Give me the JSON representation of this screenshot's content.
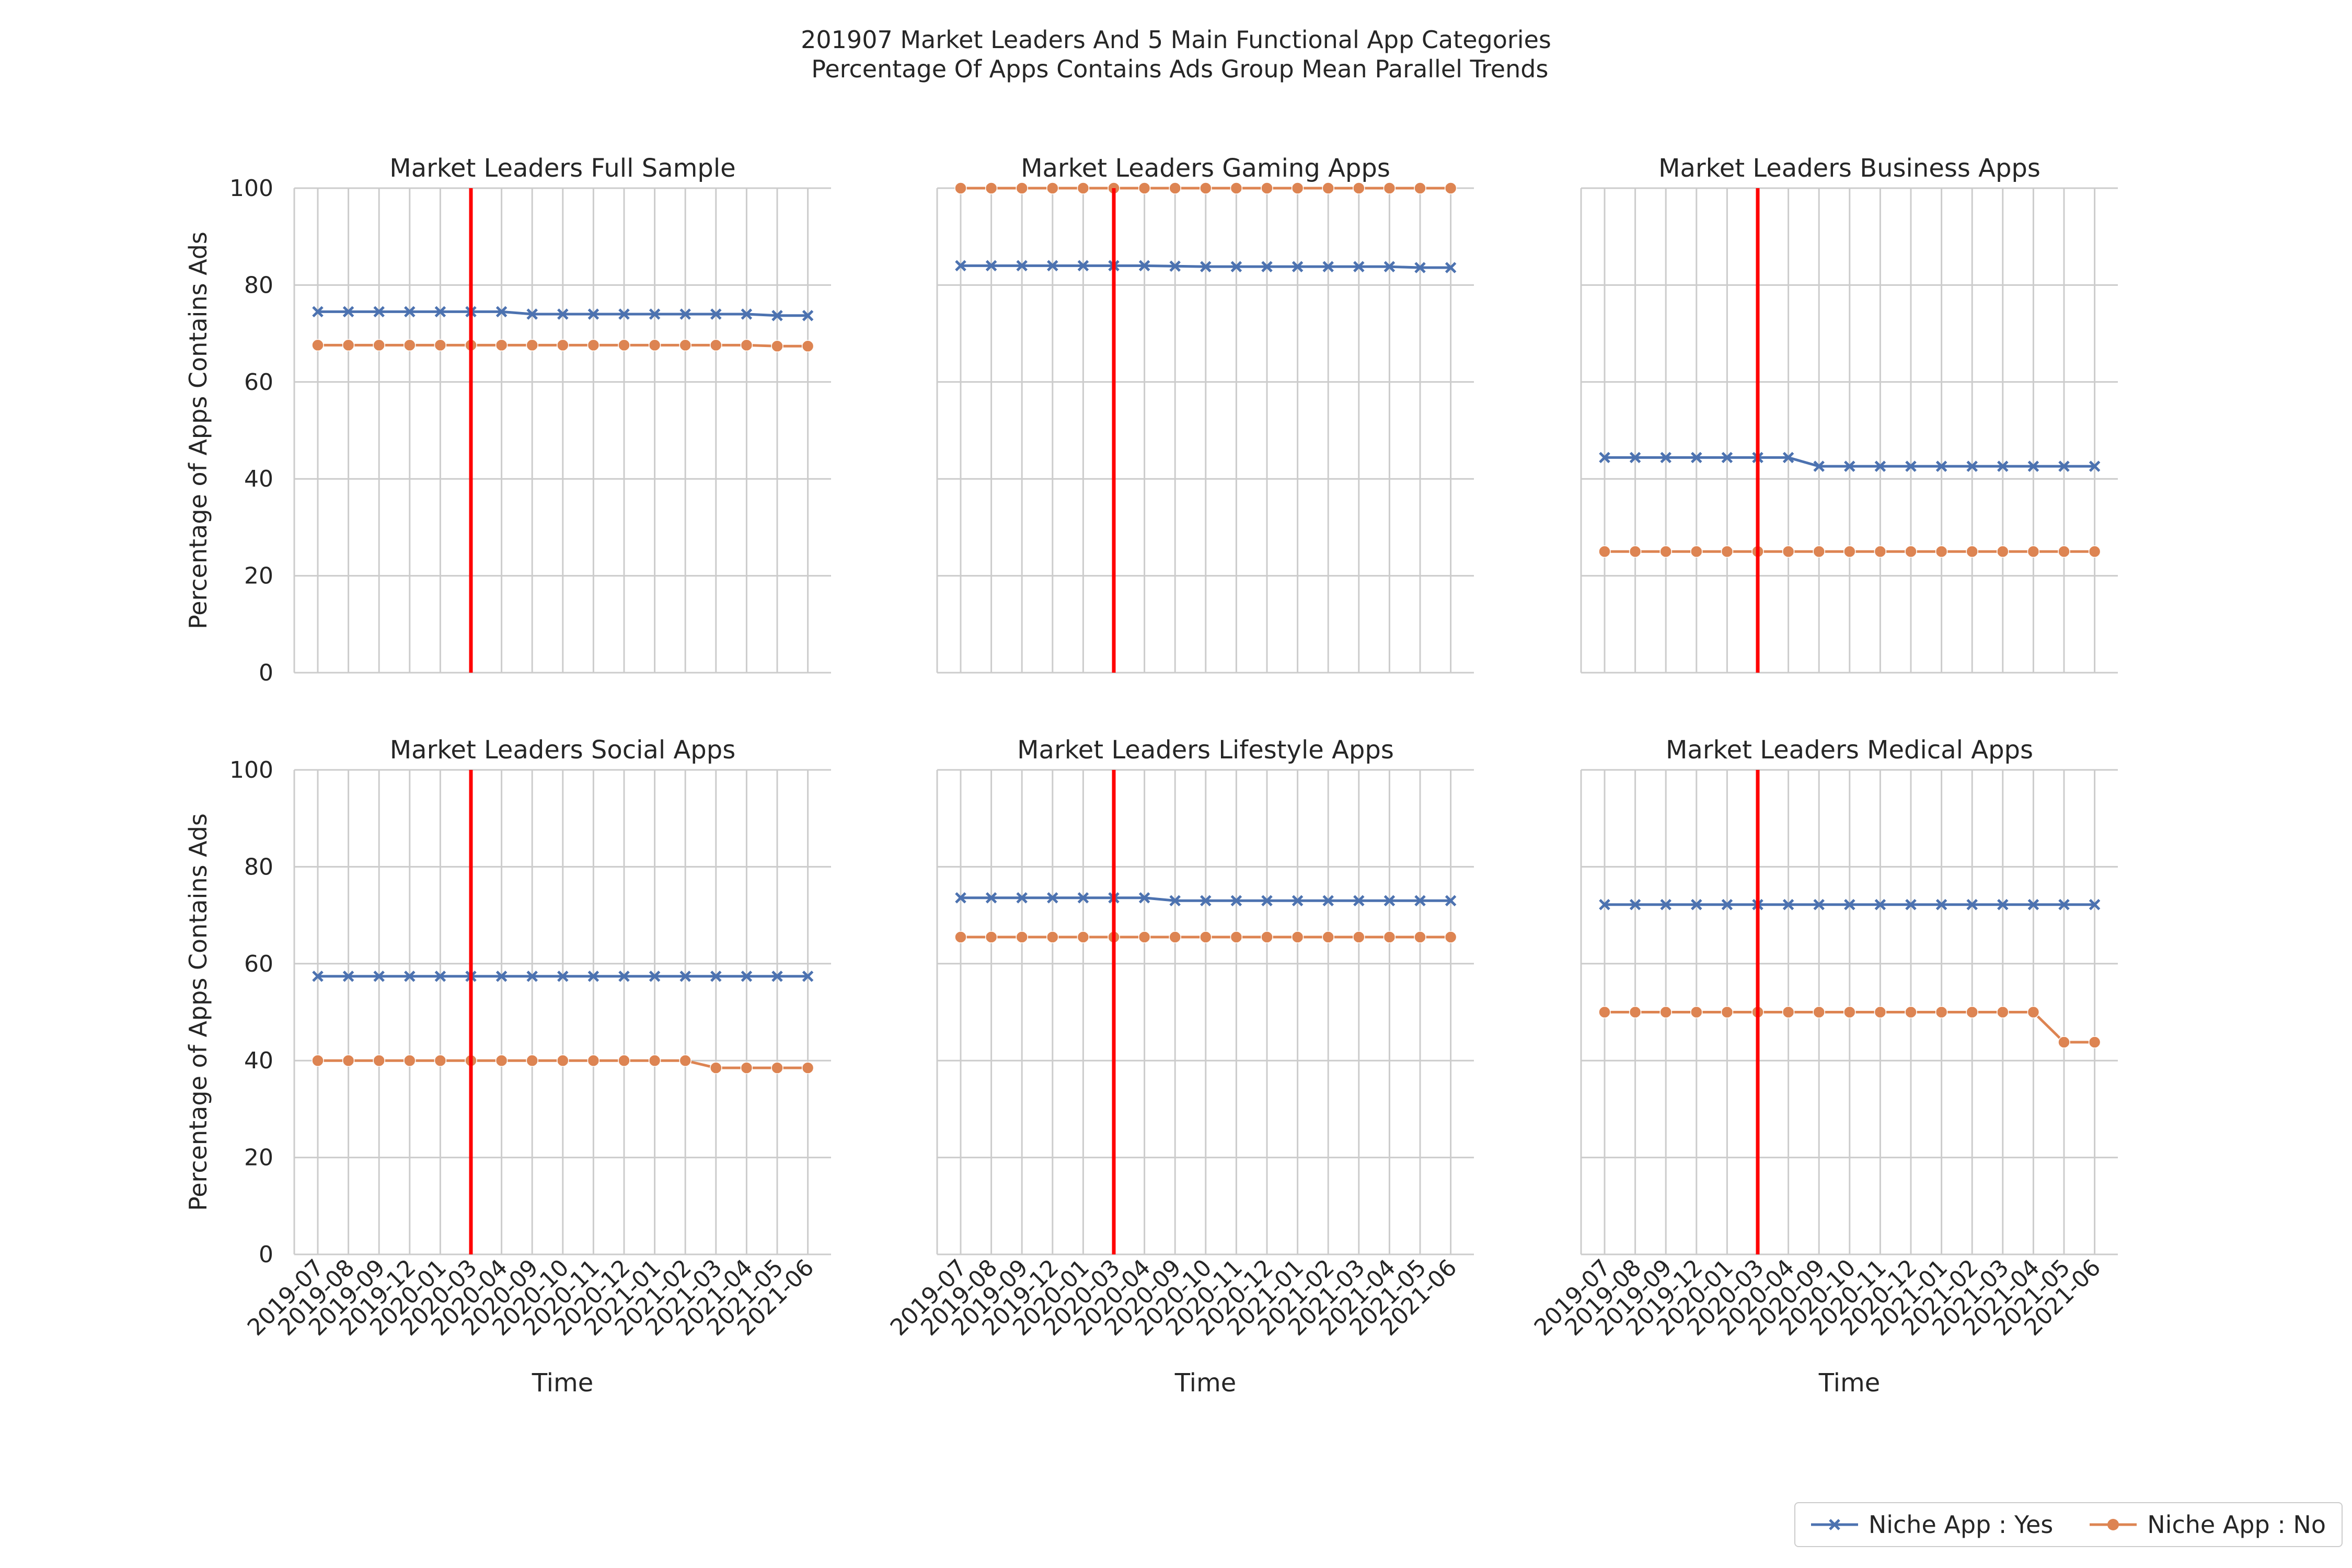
{
  "figure": {
    "title_line1": "201907 Market Leaders And 5 Main Functional App Categories",
    "title_line2": " Percentage Of Apps Contains Ads Group Mean Parallel Trends"
  },
  "colors": {
    "series_yes": "#4c72b0",
    "series_no": "#dd8452",
    "treatment_line": "#ff0000",
    "grid": "#cccccc",
    "text": "#262626"
  },
  "legend": [
    {
      "label": "Niche App : Yes",
      "marker": "x"
    },
    {
      "label": "Niche App : No",
      "marker": "circle"
    }
  ],
  "chart_data": [
    {
      "type": "line",
      "title": "Market Leaders Full Sample",
      "xlabel": "Time",
      "ylabel": "Percentage of Apps Contains Ads",
      "x": [
        "2019-07",
        "2019-08",
        "2019-09",
        "2019-12",
        "2020-01",
        "2020-03",
        "2020-04",
        "2020-09",
        "2020-10",
        "2020-11",
        "2020-12",
        "2021-01",
        "2021-02",
        "2021-03",
        "2021-04",
        "2021-05",
        "2021-06"
      ],
      "ylim": [
        0,
        100
      ],
      "yticks": [
        0,
        20,
        40,
        60,
        80,
        100
      ],
      "treatment_line_at": "2020-03",
      "series": [
        {
          "name": "Niche App : Yes",
          "values": [
            74.5,
            74.5,
            74.5,
            74.5,
            74.5,
            74.5,
            74.5,
            74.0,
            74.0,
            74.0,
            74.0,
            74.0,
            74.0,
            74.0,
            74.0,
            73.7,
            73.7
          ]
        },
        {
          "name": "Niche App : No",
          "values": [
            67.6,
            67.6,
            67.6,
            67.6,
            67.6,
            67.6,
            67.6,
            67.6,
            67.6,
            67.6,
            67.6,
            67.6,
            67.6,
            67.6,
            67.6,
            67.4,
            67.4
          ]
        }
      ]
    },
    {
      "type": "line",
      "title": "Market Leaders Gaming Apps",
      "xlabel": "Time",
      "ylabel": "",
      "x": [
        "2019-07",
        "2019-08",
        "2019-09",
        "2019-12",
        "2020-01",
        "2020-03",
        "2020-04",
        "2020-09",
        "2020-10",
        "2020-11",
        "2020-12",
        "2021-01",
        "2021-02",
        "2021-03",
        "2021-04",
        "2021-05",
        "2021-06"
      ],
      "ylim": [
        0,
        100
      ],
      "yticks": [
        0,
        20,
        40,
        60,
        80,
        100
      ],
      "treatment_line_at": "2020-03",
      "series": [
        {
          "name": "Niche App : Yes",
          "values": [
            84.0,
            84.0,
            84.0,
            84.0,
            84.0,
            84.0,
            84.0,
            83.9,
            83.8,
            83.8,
            83.8,
            83.8,
            83.8,
            83.8,
            83.8,
            83.6,
            83.6
          ]
        },
        {
          "name": "Niche App : No",
          "values": [
            100,
            100,
            100,
            100,
            100,
            100,
            100,
            100,
            100,
            100,
            100,
            100,
            100,
            100,
            100,
            100,
            100
          ]
        }
      ]
    },
    {
      "type": "line",
      "title": "Market Leaders Business Apps",
      "xlabel": "Time",
      "ylabel": "",
      "x": [
        "2019-07",
        "2019-08",
        "2019-09",
        "2019-12",
        "2020-01",
        "2020-03",
        "2020-04",
        "2020-09",
        "2020-10",
        "2020-11",
        "2020-12",
        "2021-01",
        "2021-02",
        "2021-03",
        "2021-04",
        "2021-05",
        "2021-06"
      ],
      "ylim": [
        0,
        100
      ],
      "yticks": [
        0,
        20,
        40,
        60,
        80,
        100
      ],
      "treatment_line_at": "2020-03",
      "series": [
        {
          "name": "Niche App : Yes",
          "values": [
            44.4,
            44.4,
            44.4,
            44.4,
            44.4,
            44.4,
            44.4,
            42.6,
            42.6,
            42.6,
            42.6,
            42.6,
            42.6,
            42.6,
            42.6,
            42.6,
            42.6
          ]
        },
        {
          "name": "Niche App : No",
          "values": [
            25.0,
            25.0,
            25.0,
            25.0,
            25.0,
            25.0,
            25.0,
            25.0,
            25.0,
            25.0,
            25.0,
            25.0,
            25.0,
            25.0,
            25.0,
            25.0,
            25.0
          ]
        }
      ]
    },
    {
      "type": "line",
      "title": "Market Leaders Social Apps",
      "xlabel": "Time",
      "ylabel": "Percentage of Apps Contains Ads",
      "x": [
        "2019-07",
        "2019-08",
        "2019-09",
        "2019-12",
        "2020-01",
        "2020-03",
        "2020-04",
        "2020-09",
        "2020-10",
        "2020-11",
        "2020-12",
        "2021-01",
        "2021-02",
        "2021-03",
        "2021-04",
        "2021-05",
        "2021-06"
      ],
      "ylim": [
        0,
        100
      ],
      "yticks": [
        0,
        20,
        40,
        60,
        80,
        100
      ],
      "treatment_line_at": "2020-03",
      "series": [
        {
          "name": "Niche App : Yes",
          "values": [
            57.4,
            57.4,
            57.4,
            57.4,
            57.4,
            57.4,
            57.4,
            57.4,
            57.4,
            57.4,
            57.4,
            57.4,
            57.4,
            57.4,
            57.4,
            57.4,
            57.4
          ]
        },
        {
          "name": "Niche App : No",
          "values": [
            40.0,
            40.0,
            40.0,
            40.0,
            40.0,
            40.0,
            40.0,
            40.0,
            40.0,
            40.0,
            40.0,
            40.0,
            40.0,
            38.5,
            38.5,
            38.5,
            38.5
          ]
        }
      ]
    },
    {
      "type": "line",
      "title": "Market Leaders Lifestyle Apps",
      "xlabel": "Time",
      "ylabel": "",
      "x": [
        "2019-07",
        "2019-08",
        "2019-09",
        "2019-12",
        "2020-01",
        "2020-03",
        "2020-04",
        "2020-09",
        "2020-10",
        "2020-11",
        "2020-12",
        "2021-01",
        "2021-02",
        "2021-03",
        "2021-04",
        "2021-05",
        "2021-06"
      ],
      "ylim": [
        0,
        100
      ],
      "yticks": [
        0,
        20,
        40,
        60,
        80,
        100
      ],
      "treatment_line_at": "2020-03",
      "series": [
        {
          "name": "Niche App : Yes",
          "values": [
            73.6,
            73.6,
            73.6,
            73.6,
            73.6,
            73.6,
            73.6,
            73.0,
            73.0,
            73.0,
            73.0,
            73.0,
            73.0,
            73.0,
            73.0,
            73.0,
            73.0
          ]
        },
        {
          "name": "Niche App : No",
          "values": [
            65.5,
            65.5,
            65.5,
            65.5,
            65.5,
            65.5,
            65.5,
            65.5,
            65.5,
            65.5,
            65.5,
            65.5,
            65.5,
            65.5,
            65.5,
            65.5,
            65.5
          ]
        }
      ]
    },
    {
      "type": "line",
      "title": "Market Leaders Medical Apps",
      "xlabel": "Time",
      "ylabel": "",
      "x": [
        "2019-07",
        "2019-08",
        "2019-09",
        "2019-12",
        "2020-01",
        "2020-03",
        "2020-04",
        "2020-09",
        "2020-10",
        "2020-11",
        "2020-12",
        "2021-01",
        "2021-02",
        "2021-03",
        "2021-04",
        "2021-05",
        "2021-06"
      ],
      "ylim": [
        0,
        100
      ],
      "yticks": [
        0,
        20,
        40,
        60,
        80,
        100
      ],
      "treatment_line_at": "2020-03",
      "series": [
        {
          "name": "Niche App : Yes",
          "values": [
            72.2,
            72.2,
            72.2,
            72.2,
            72.2,
            72.2,
            72.2,
            72.2,
            72.2,
            72.2,
            72.2,
            72.2,
            72.2,
            72.2,
            72.2,
            72.2,
            72.2
          ]
        },
        {
          "name": "Niche App : No",
          "values": [
            50.0,
            50.0,
            50.0,
            50.0,
            50.0,
            50.0,
            50.0,
            50.0,
            50.0,
            50.0,
            50.0,
            50.0,
            50.0,
            50.0,
            50.0,
            43.8,
            43.8
          ]
        }
      ]
    }
  ]
}
